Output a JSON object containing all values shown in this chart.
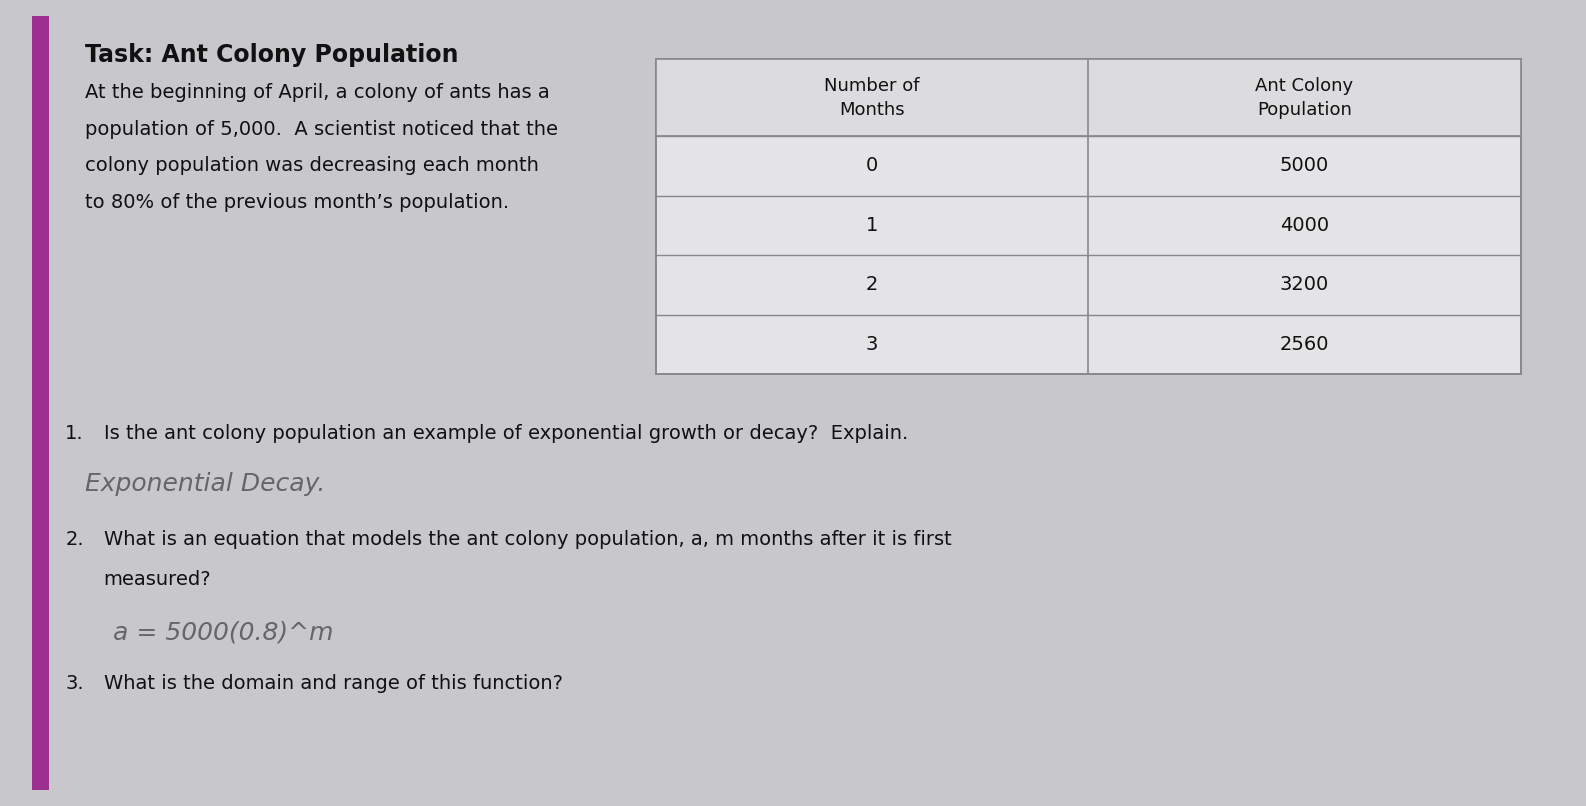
{
  "title": "Task: Ant Colony Population",
  "paragraph_lines": [
    "At the beginning of April, a colony of ants has a",
    "population of 5,000.  A scientist noticed that the",
    "colony population was decreasing each month",
    "to 80% of the previous month’s population."
  ],
  "table_header": [
    "Number of\nMonths",
    "Ant Colony\nPopulation"
  ],
  "table_rows": [
    [
      "0",
      "5000"
    ],
    [
      "1",
      "4000"
    ],
    [
      "2",
      "3200"
    ],
    [
      "3",
      "2560"
    ]
  ],
  "q1_label": "1.",
  "q1_text": "Is the ant colony population an example of exponential growth or decay?  Explain.",
  "q1_answer": "Exponential Decay.",
  "q2_label": "2.",
  "q2_text_line1": "What is an equation that models the ant colony population, a, m months after it is first",
  "q2_text_line2": "measured?",
  "q2_answer": "a = 5000(0.8)^m",
  "q3_label": "3.",
  "q3_text": "What is the domain and range of this function?",
  "bg_color": "#c8c8cc",
  "card_color": "#e8e8ea",
  "table_bg": "#e4e4e6",
  "table_header_bg": "#dcdcde",
  "border_color": "#888888",
  "purple_strip": "#9b3090",
  "title_fontsize": 17,
  "body_fontsize": 14,
  "answer_fontsize": 18,
  "handwrite_color": "#666666"
}
